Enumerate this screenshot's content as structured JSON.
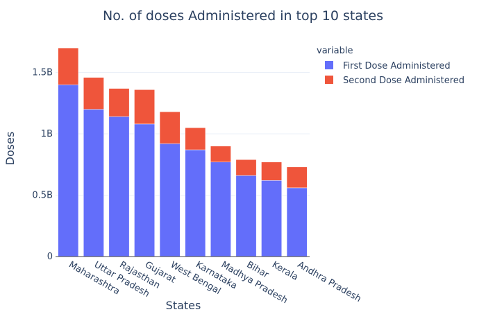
{
  "chart_data": {
    "type": "bar",
    "stacked": true,
    "title": "No. of doses Administered in top 10 states",
    "xlabel": "States",
    "ylabel": "Doses",
    "categories": [
      "Maharashtra",
      "Uttar Pradesh",
      "Rajasthan",
      "Gujarat",
      "West Bengal",
      "Karnataka",
      "Madhya Pradesh",
      "Bihar",
      "Kerala",
      "Andhra Pradesh"
    ],
    "series": [
      {
        "name": "First Dose Administered",
        "color": "#636efa",
        "values": [
          1.4,
          1.2,
          1.14,
          1.08,
          0.92,
          0.87,
          0.77,
          0.66,
          0.62,
          0.56
        ]
      },
      {
        "name": "Second Dose Administered",
        "color": "#ef553b",
        "values": [
          0.3,
          0.26,
          0.23,
          0.28,
          0.26,
          0.18,
          0.13,
          0.13,
          0.15,
          0.17
        ]
      }
    ],
    "yunit": "billions",
    "ylim": [
      0,
      1.78
    ],
    "yticks": [
      0,
      0.5,
      1,
      1.5
    ],
    "ytick_labels": [
      "0",
      "0.5B",
      "1B",
      "1.5B"
    ],
    "legend": {
      "title": "variable",
      "position": "top-right"
    },
    "grid": true
  }
}
